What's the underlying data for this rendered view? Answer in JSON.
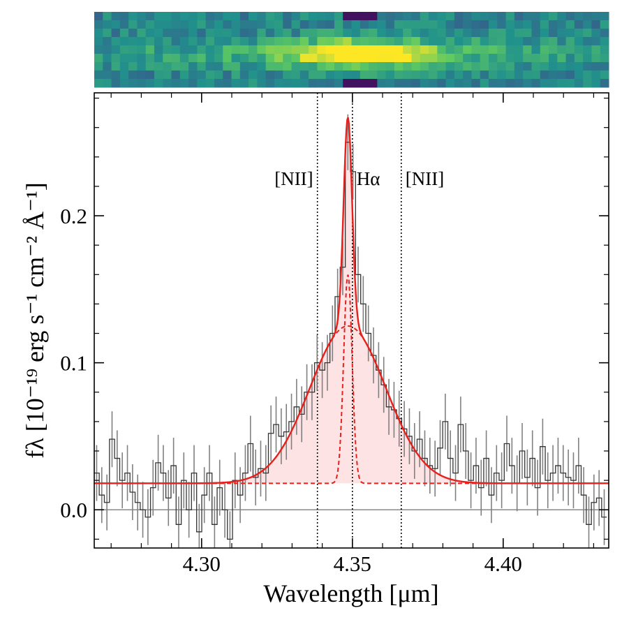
{
  "chart_data": {
    "type": "step",
    "x_label": "Wavelength [μm]",
    "y_label": "fλ [10⁻¹⁹ erg s⁻¹ cm⁻² Å⁻¹]",
    "xlim": [
      4.2644,
      4.435
    ],
    "ylim": [
      -0.026,
      0.2836
    ],
    "xticks": [
      {
        "value": 4.3,
        "label": "4.30"
      },
      {
        "value": 4.35,
        "label": "4.35"
      },
      {
        "value": 4.4,
        "label": "4.40"
      }
    ],
    "yticks": [
      {
        "value": 0,
        "label": "0.0"
      },
      0.1,
      0.2
    ],
    "xminorticks": [
      4.27,
      4.28,
      4.29,
      4.31,
      4.32,
      4.33,
      4.34,
      4.36,
      4.37,
      4.38,
      4.39,
      4.41,
      4.42,
      4.43
    ],
    "yminorticks": [
      -0.02,
      0.02,
      0.04,
      0.06,
      0.08,
      0.12,
      0.14,
      0.16,
      0.18,
      0.22,
      0.24,
      0.26,
      0.28
    ],
    "zero_line": 0,
    "color": "#333333",
    "error_color": "#808080",
    "yerr": 0.019,
    "x": [
      4.2652,
      4.2669,
      4.2686,
      4.2703,
      4.272,
      4.2737,
      4.2754,
      4.2771,
      4.2788,
      4.2805,
      4.2822,
      4.2839,
      4.2856,
      4.2873,
      4.289,
      4.2907,
      4.2924,
      4.2941,
      4.2958,
      4.2975,
      4.2992,
      4.3009,
      4.3026,
      4.3043,
      4.306,
      4.3077,
      4.3094,
      4.3111,
      4.3128,
      4.3145,
      4.3162,
      4.3179,
      4.3196,
      4.3213,
      4.323,
      4.3247,
      4.3264,
      4.3281,
      4.3298,
      4.3315,
      4.3332,
      4.3349,
      4.3366,
      4.3383,
      4.34,
      4.3417,
      4.3434,
      4.3451,
      4.3468,
      4.3485,
      4.3502,
      4.3519,
      4.3536,
      4.3553,
      4.357,
      4.3587,
      4.3604,
      4.3621,
      4.3638,
      4.3655,
      4.3672,
      4.3689,
      4.3706,
      4.3723,
      4.374,
      4.3757,
      4.3774,
      4.3791,
      4.3808,
      4.3825,
      4.3842,
      4.3859,
      4.3876,
      4.3893,
      4.391,
      4.3927,
      4.3944,
      4.3961,
      4.3978,
      4.3995,
      4.4012,
      4.4029,
      4.4046,
      4.4063,
      4.408,
      4.4097,
      4.4114,
      4.4131,
      4.4148,
      4.4165,
      4.4182,
      4.4199,
      4.4216,
      4.4233,
      4.425,
      4.4267,
      4.4284,
      4.4301,
      4.4318,
      4.4335
    ],
    "values": [
      0.025,
      0.01,
      0.005,
      0.048,
      0.035,
      0.02,
      0.025,
      0.012,
      0.005,
      0.0,
      -0.005,
      0.015,
      0.032,
      0.025,
      0.008,
      0.03,
      -0.01,
      0.02,
      0.0,
      0.025,
      -0.015,
      0.01,
      0.025,
      -0.01,
      0.015,
      0.0,
      -0.02,
      0.02,
      0.01,
      0.025,
      0.045,
      0.022,
      0.028,
      0.025,
      0.052,
      0.058,
      0.05,
      0.053,
      0.06,
      0.07,
      0.065,
      0.08,
      0.08,
      0.1,
      0.095,
      0.1,
      0.12,
      0.145,
      0.165,
      0.25,
      0.23,
      0.16,
      0.14,
      0.12,
      0.105,
      0.095,
      0.085,
      0.07,
      0.068,
      0.062,
      0.055,
      0.05,
      0.04,
      0.048,
      0.035,
      0.03,
      0.028,
      0.042,
      0.06,
      0.035,
      0.025,
      0.058,
      0.04,
      0.02,
      0.03,
      0.015,
      0.035,
      0.01,
      0.025,
      0.02,
      0.045,
      0.03,
      0.018,
      0.04,
      0.022,
      0.035,
      0.015,
      0.043,
      0.02,
      0.025,
      0.03,
      0.025,
      0.022,
      0.02,
      0.03,
      0.01,
      -0.01,
      0.005,
      0.008,
      -0.005
    ],
    "model": {
      "color": "#e8201c",
      "fill": "#fde3e4",
      "continuum": 0.018,
      "center": 4.3485,
      "narrow_amplitude": 0.142,
      "narrow_sigma": 0.0014,
      "broad_amplitude": 0.107,
      "broad_sigma": 0.0126
    },
    "lines": [
      {
        "label": "[NII]",
        "x": 4.3384
      },
      {
        "label": "Hα",
        "x": 4.35
      },
      {
        "label": "[NII]",
        "x": 4.3662
      }
    ]
  }
}
